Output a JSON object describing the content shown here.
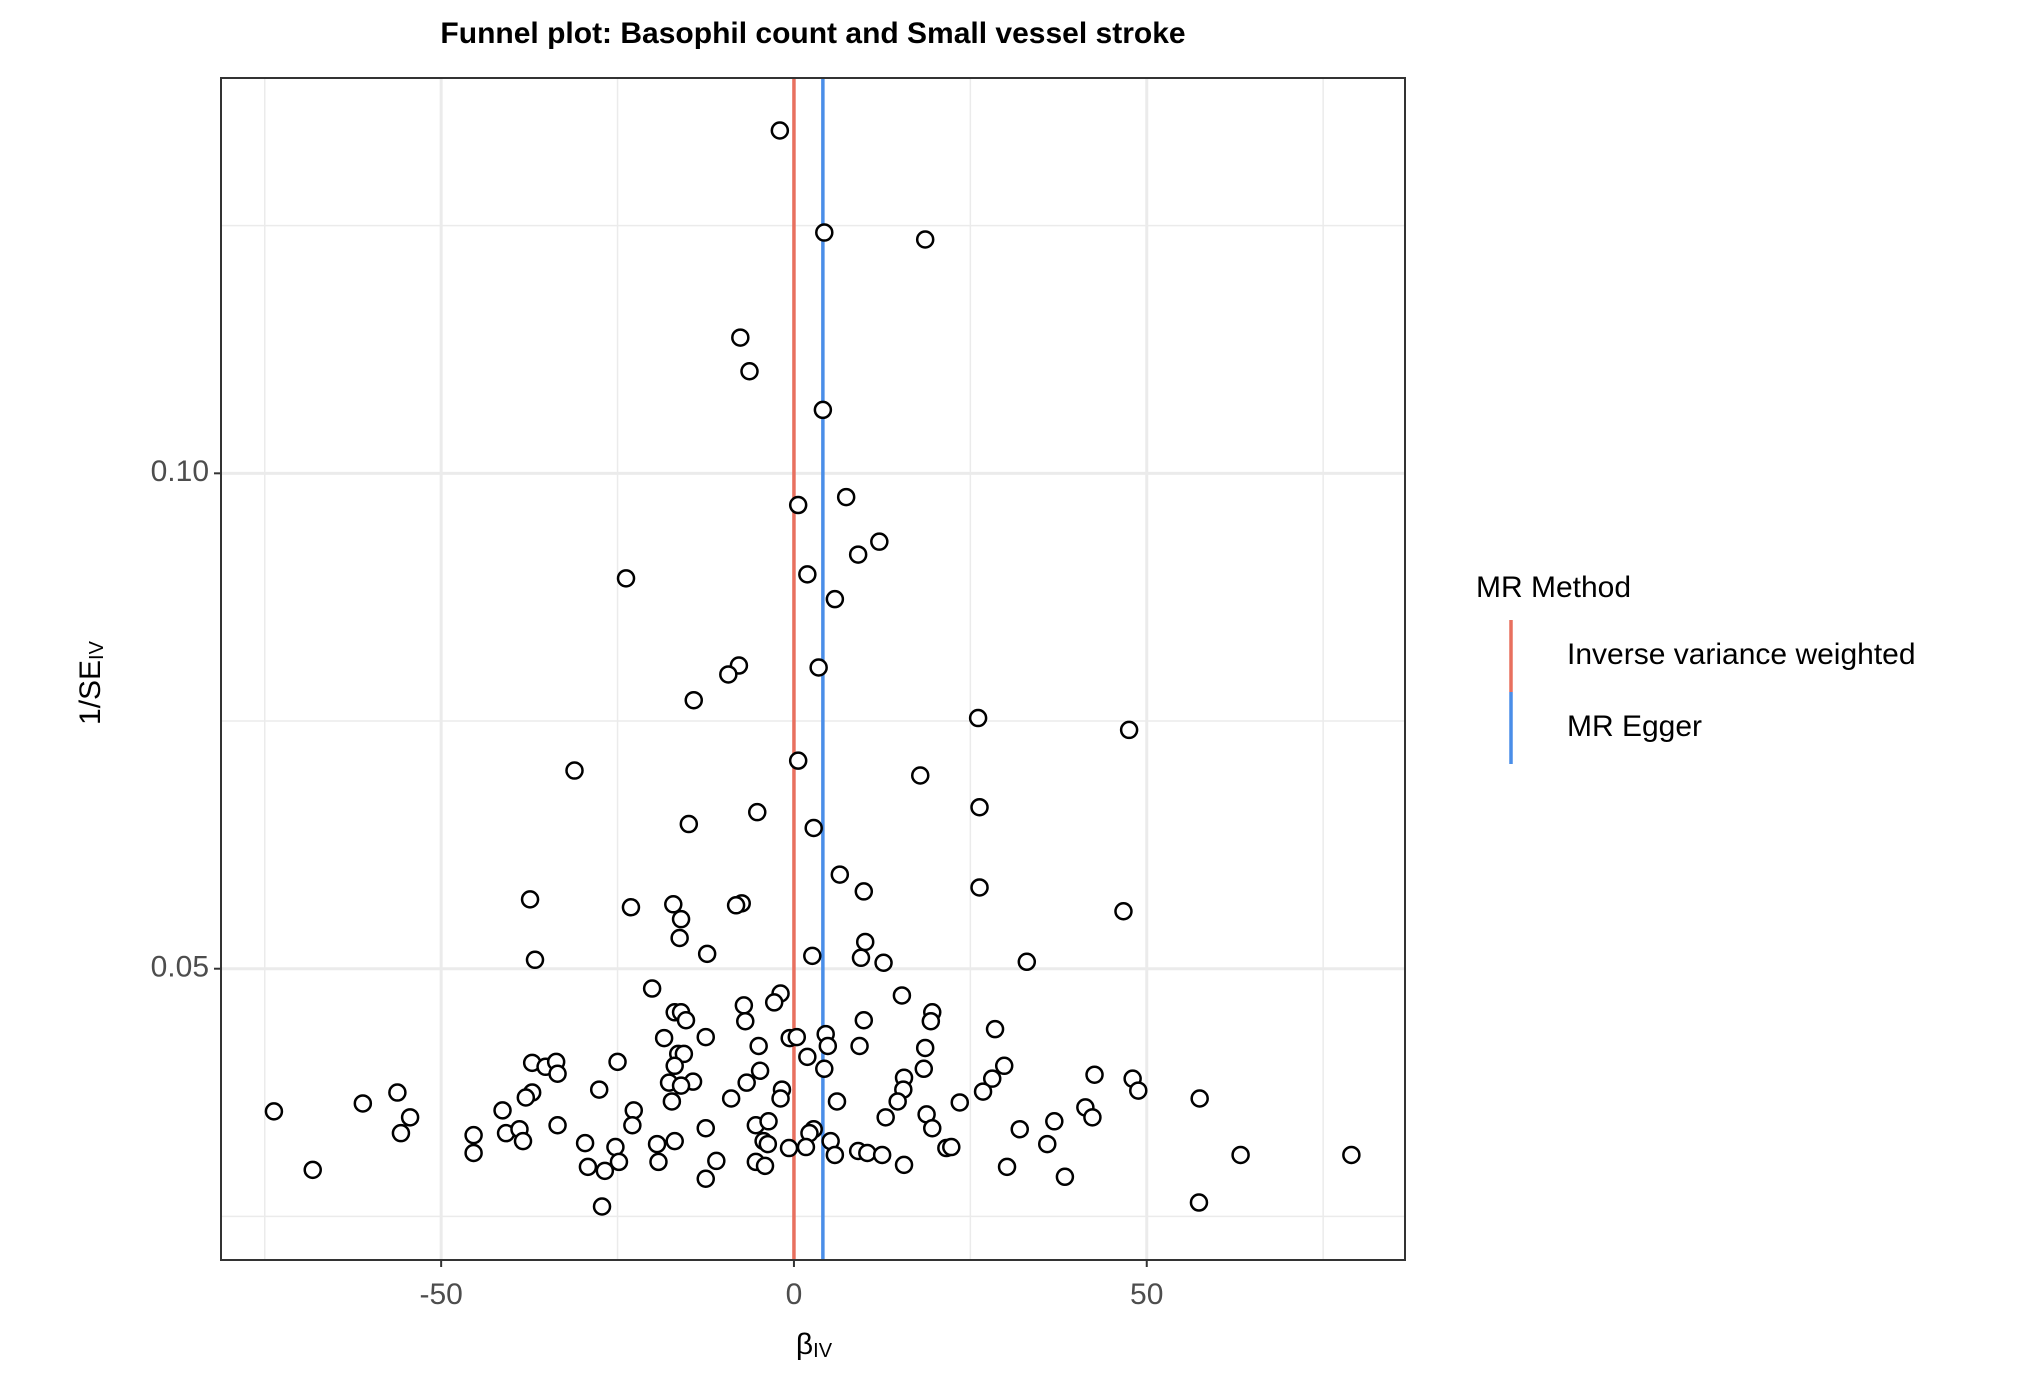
{
  "chart_data": {
    "type": "scatter",
    "title": "Funnel plot: Basophil count and Small vessel stroke",
    "xlabel": "β",
    "xlabel_sub": "IV",
    "ylabel": "1/SE",
    "ylabel_sub": "IV",
    "xlim": [
      -81.2,
      86.6
    ],
    "ylim": [
      0.0206,
      0.1399
    ],
    "xticks": [
      -50,
      0,
      50
    ],
    "yticks": [
      0.05,
      {
        "value": 0.1,
        "label": "0.10"
      }
    ],
    "xminor": [
      -75,
      -25,
      25,
      75
    ],
    "yminor": [
      0.025,
      0.075,
      0.125
    ],
    "grid": true,
    "legend_title": "MR Method",
    "legend": "right",
    "lines": [
      {
        "name": "Inverse variance weighted",
        "color": "#e8705f",
        "x": 0
      },
      {
        "name": "MR Egger",
        "color": "#4a8ee8",
        "x": 4.1
      }
    ],
    "x": [
      -2.0,
      4.3,
      18.6,
      -7.6,
      -6.3,
      4.1,
      0.6,
      7.4,
      12.1,
      9.1,
      1.9,
      -23.8,
      5.8,
      -7.8,
      -9.3,
      3.5,
      -14.2,
      26.1,
      47.5,
      -31.1,
      0.6,
      17.9,
      -5.2,
      26.3,
      -14.9,
      2.8,
      6.5,
      9.9,
      26.3,
      -37.4,
      -23.1,
      -17.1,
      -7.4,
      -8.2,
      -16.0,
      46.7,
      -16.2,
      10.1,
      -12.3,
      2.6,
      9.5,
      12.7,
      -36.7,
      33.0,
      -20.1,
      -1.9,
      15.3,
      -2.8,
      -7.1,
      19.6,
      -16.9,
      -16.0,
      -15.3,
      -6.9,
      19.4,
      9.9,
      4.5,
      28.5,
      -18.4,
      -12.5,
      -0.6,
      0.4,
      -5.0,
      4.8,
      9.3,
      18.6,
      1.9,
      -16.4,
      -15.6,
      -37.1,
      -35.2,
      -33.7,
      -25.0,
      29.8,
      -33.5,
      -16.9,
      4.3,
      -4.8,
      18.4,
      15.6,
      28.1,
      42.6,
      48.0,
      -17.7,
      -14.3,
      -16.0,
      -6.7,
      -1.7,
      48.8,
      -27.6,
      -37.1,
      15.5,
      26.8,
      57.5,
      -38.0,
      -56.2,
      -8.9,
      -1.9,
      6.1,
      14.7,
      23.5,
      -17.3,
      -61.1,
      -41.3,
      -22.7,
      -73.7,
      41.3,
      -54.4,
      13.0,
      18.8,
      42.3,
      36.9,
      -5.4,
      -22.9,
      -33.5,
      -12.5,
      -3.6,
      19.6,
      32.0,
      2.8,
      -55.7,
      -45.4,
      -40.8,
      -38.9,
      2.2,
      -38.4,
      -29.6,
      -25.3,
      -19.4,
      -16.9,
      -4.3,
      -3.7,
      -0.7,
      1.7,
      5.2,
      9.1,
      10.4,
      12.5,
      21.6,
      22.3,
      35.9,
      -45.4,
      5.8,
      63.3,
      79.0,
      -5.4,
      -4.1,
      -24.8,
      -19.2,
      -11.0,
      15.6,
      30.2,
      -68.2,
      -29.2,
      -26.8,
      38.4,
      -12.5,
      57.4,
      -27.2
    ],
    "y": [
      0.1346,
      0.1243,
      0.1236,
      0.1137,
      0.1103,
      0.1064,
      0.0968,
      0.0976,
      0.0931,
      0.0918,
      0.0898,
      0.0894,
      0.0873,
      0.0806,
      0.0797,
      0.0804,
      0.0771,
      0.0753,
      0.0741,
      0.07,
      0.071,
      0.0695,
      0.0658,
      0.0663,
      0.0646,
      0.0642,
      0.0595,
      0.0578,
      0.0582,
      0.057,
      0.0562,
      0.0565,
      0.0566,
      0.0564,
      0.055,
      0.0558,
      0.0531,
      0.0527,
      0.0515,
      0.0513,
      0.0511,
      0.0506,
      0.0509,
      0.0507,
      0.048,
      0.0475,
      0.0473,
      0.0466,
      0.0463,
      0.0456,
      0.0456,
      0.0456,
      0.0448,
      0.0447,
      0.0447,
      0.0448,
      0.0434,
      0.0439,
      0.043,
      0.0431,
      0.043,
      0.0431,
      0.0422,
      0.0422,
      0.0422,
      0.042,
      0.0411,
      0.0414,
      0.0414,
      0.0405,
      0.0401,
      0.0406,
      0.0406,
      0.0402,
      0.0394,
      0.0402,
      0.0399,
      0.0397,
      0.0399,
      0.039,
      0.0389,
      0.0393,
      0.0389,
      0.0385,
      0.0386,
      0.0382,
      0.0385,
      0.0378,
      0.0377,
      0.0378,
      0.0375,
      0.0378,
      0.0376,
      0.0369,
      0.037,
      0.0375,
      0.0369,
      0.0369,
      0.0366,
      0.0366,
      0.0365,
      0.0366,
      0.0364,
      0.0357,
      0.0357,
      0.0356,
      0.036,
      0.035,
      0.035,
      0.0353,
      0.035,
      0.0346,
      0.0342,
      0.0342,
      0.0342,
      0.0339,
      0.0346,
      0.0339,
      0.0338,
      0.0338,
      0.0334,
      0.0332,
      0.0334,
      0.0338,
      0.0334,
      0.0326,
      0.0324,
      0.032,
      0.0323,
      0.0326,
      0.0326,
      0.0323,
      0.0319,
      0.032,
      0.0326,
      0.0316,
      0.0314,
      0.0312,
      0.0319,
      0.032,
      0.0323,
      0.0314,
      0.0312,
      0.0312,
      0.0312,
      0.0305,
      0.0301,
      0.0305,
      0.0305,
      0.0306,
      0.0302,
      0.03,
      0.0297,
      0.03,
      0.0296,
      0.029,
      0.0288,
      0.0264,
      0.026
    ]
  }
}
